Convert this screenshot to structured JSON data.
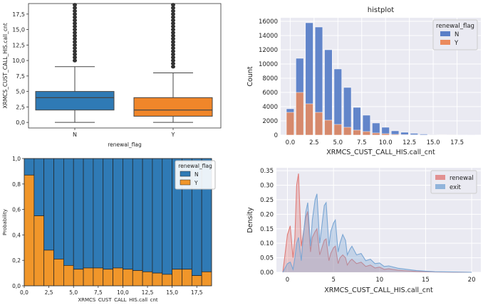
{
  "chart_data": [
    {
      "type": "box",
      "title": "",
      "xlabel": "renewal_flag",
      "ylabel": "XRMCS_CUST_CALL_HIS.call_cnt",
      "categories": [
        "N",
        "Y"
      ],
      "colors": [
        "#2f7ab5",
        "#f0862a"
      ],
      "ylim": [
        -0.9,
        19.2
      ],
      "yticks": [
        0.0,
        2.5,
        5.0,
        7.5,
        10.0,
        12.5,
        15.0,
        17.5
      ],
      "ytick_labels": [
        "0,0",
        "2,5",
        "5,0",
        "7,5",
        "10,0",
        "12,5",
        "15,0",
        "17,5"
      ],
      "boxes": [
        {
          "name": "N",
          "whisker_low": 0,
          "q1": 2,
          "median": 4,
          "q3": 5,
          "whisker_high": 9,
          "outliers": [
            10,
            10.5,
            11,
            11.5,
            12,
            12.5,
            13,
            13.5,
            14,
            14.5,
            15,
            15.5,
            16,
            16.5,
            17,
            17.5,
            18,
            18.5,
            19
          ]
        },
        {
          "name": "Y",
          "whisker_low": 0,
          "q1": 1,
          "median": 2,
          "q3": 4,
          "whisker_high": 8,
          "outliers": [
            9,
            9.5,
            10,
            10.5,
            11,
            11.5,
            12,
            12.5,
            13,
            13.5,
            14,
            14.5,
            15,
            15.5,
            16,
            16.5,
            17,
            17.5,
            18,
            18.5,
            19
          ]
        }
      ]
    },
    {
      "type": "bar",
      "stacked": false,
      "title": "histplot",
      "xlabel": "XRMCS_CUST_CALL_HIS.call_cnt",
      "ylabel": "Count",
      "xlim": [
        -1,
        20
      ],
      "ylim": [
        0,
        16500
      ],
      "xticks": [
        0.0,
        2.5,
        5.0,
        7.5,
        10.0,
        12.5,
        15.0,
        17.5
      ],
      "xtick_labels": [
        "0.0",
        "2.5",
        "5.0",
        "7.5",
        "10.0",
        "12.5",
        "15.0",
        "17.5"
      ],
      "yticks": [
        0,
        2000,
        4000,
        6000,
        8000,
        10000,
        12000,
        14000,
        16000
      ],
      "legend_title": "renewal_flag",
      "legend_position": "top-right",
      "series": [
        {
          "name": "N",
          "color": "#5b7fc7",
          "x": [
            0,
            1,
            2,
            3,
            4,
            5,
            6,
            7,
            8,
            9,
            10,
            11,
            12,
            13,
            14,
            15,
            16,
            17,
            18,
            19
          ],
          "values": [
            3700,
            10800,
            15800,
            15200,
            12000,
            9300,
            6700,
            3900,
            2800,
            1700,
            1100,
            600,
            400,
            250,
            150,
            80,
            50,
            30,
            20,
            10
          ]
        },
        {
          "name": "Y",
          "color": "#eb8a5c",
          "x": [
            0,
            1,
            2,
            3,
            4,
            5,
            6,
            7,
            8,
            9,
            10,
            11,
            12,
            13,
            14,
            15,
            16,
            17,
            18,
            19
          ],
          "values": [
            3200,
            6000,
            4400,
            3200,
            2100,
            1500,
            1100,
            700,
            500,
            300,
            200,
            100,
            60,
            40,
            20,
            10,
            5,
            5,
            0,
            0
          ]
        }
      ]
    },
    {
      "type": "bar",
      "stacked": true,
      "title": "",
      "xlabel": "XRMCS_CUST_CALL_HIS.call_cnt",
      "ylabel": "Probability",
      "xlim": [
        0,
        19
      ],
      "ylim": [
        0,
        1
      ],
      "xticks": [
        0.0,
        2.5,
        5.0,
        7.5,
        10.0,
        12.5,
        15.0,
        17.5
      ],
      "xtick_labels": [
        "0,0",
        "2,5",
        "5,0",
        "7,5",
        "10,0",
        "12,5",
        "15,0",
        "17,5"
      ],
      "yticks": [
        0.0,
        0.2,
        0.4,
        0.6,
        0.8,
        1.0
      ],
      "ytick_labels": [
        "0,0",
        "0,2",
        "0,4",
        "0,6",
        "0,8",
        "1,0"
      ],
      "legend_title": "renewal_flag",
      "legend_position": "top-right",
      "x": [
        0,
        1,
        2,
        3,
        4,
        5,
        6,
        7,
        8,
        9,
        10,
        11,
        12,
        13,
        14,
        15,
        16,
        17,
        18
      ],
      "series": [
        {
          "name": "N",
          "color": "#2f7ab5",
          "values": [
            0.13,
            0.45,
            0.72,
            0.79,
            0.84,
            0.87,
            0.86,
            0.86,
            0.87,
            0.86,
            0.87,
            0.88,
            0.89,
            0.9,
            0.91,
            0.87,
            0.87,
            0.92,
            0.89
          ]
        },
        {
          "name": "Y",
          "color": "#f0962a",
          "values": [
            0.87,
            0.55,
            0.28,
            0.21,
            0.16,
            0.13,
            0.14,
            0.14,
            0.13,
            0.14,
            0.13,
            0.12,
            0.11,
            0.1,
            0.09,
            0.13,
            0.13,
            0.08,
            0.11
          ]
        }
      ]
    },
    {
      "type": "area",
      "title": "",
      "xlabel": "XRMCS_CUST_CALL_HIS.call_cnt",
      "ylabel": "Density",
      "xlim": [
        -1.2,
        21
      ],
      "ylim": [
        0,
        0.36
      ],
      "xticks": [
        0,
        5,
        10,
        15,
        20
      ],
      "yticks": [
        0.0,
        0.05,
        0.1,
        0.15,
        0.2,
        0.25,
        0.3,
        0.35
      ],
      "ytick_labels": [
        "0.00",
        "0.05",
        "0.10",
        "0.15",
        "0.20",
        "0.25",
        "0.30",
        "0.35"
      ],
      "legend_position": "top-right",
      "series": [
        {
          "name": "renewal",
          "color": "#e07b78",
          "x": [
            -0.5,
            0,
            0.3,
            0.6,
            0.8,
            1,
            1.2,
            1.5,
            1.7,
            2,
            2.2,
            2.5,
            2.7,
            3,
            3.2,
            3.5,
            3.7,
            4,
            4.2,
            4.5,
            4.7,
            5,
            5.2,
            5.5,
            5.7,
            6,
            6.3,
            6.5,
            6.8,
            7,
            7.5,
            8,
            8.5,
            9,
            9.5,
            10,
            10.5,
            11,
            12,
            13,
            14,
            15,
            16,
            18,
            20
          ],
          "y": [
            0,
            0.13,
            0.16,
            0.05,
            0.12,
            0.3,
            0.34,
            0.09,
            0.13,
            0.19,
            0.21,
            0.07,
            0.12,
            0.14,
            0.15,
            0.06,
            0.08,
            0.11,
            0.115,
            0.04,
            0.065,
            0.085,
            0.09,
            0.03,
            0.05,
            0.06,
            0.05,
            0.025,
            0.04,
            0.045,
            0.03,
            0.035,
            0.02,
            0.025,
            0.015,
            0.018,
            0.01,
            0.012,
            0.007,
            0.005,
            0.003,
            0.002,
            0.001,
            0.0005,
            0
          ]
        },
        {
          "name": "exit",
          "color": "#7aa6d4",
          "x": [
            -0.5,
            0,
            0.3,
            0.6,
            0.8,
            1,
            1.2,
            1.5,
            1.7,
            2,
            2.2,
            2.5,
            2.7,
            3,
            3.2,
            3.5,
            3.7,
            4,
            4.2,
            4.5,
            4.7,
            5,
            5.2,
            5.5,
            5.7,
            6,
            6.3,
            6.5,
            6.8,
            7,
            7.5,
            8,
            8.5,
            9,
            9.5,
            10,
            10.5,
            11,
            12,
            13,
            14,
            15,
            16,
            18,
            20
          ],
          "y": [
            0,
            0.03,
            0.035,
            0.01,
            0.05,
            0.1,
            0.12,
            0.04,
            0.12,
            0.21,
            0.24,
            0.09,
            0.18,
            0.25,
            0.27,
            0.1,
            0.15,
            0.23,
            0.24,
            0.09,
            0.14,
            0.17,
            0.18,
            0.07,
            0.1,
            0.13,
            0.11,
            0.06,
            0.08,
            0.09,
            0.06,
            0.065,
            0.04,
            0.045,
            0.03,
            0.032,
            0.02,
            0.022,
            0.014,
            0.01,
            0.006,
            0.004,
            0.002,
            0.001,
            0
          ]
        }
      ]
    }
  ]
}
